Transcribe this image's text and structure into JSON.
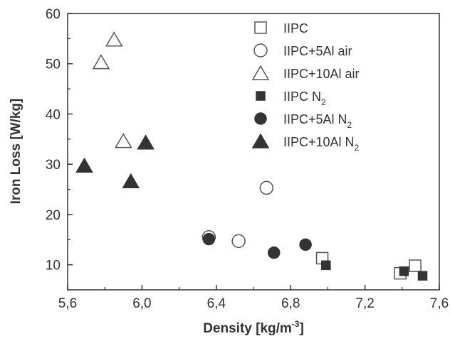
{
  "chart_data": {
    "type": "scatter",
    "title": "",
    "xlabel": "Density [kg/m",
    "xlabel_sup": "-3",
    "xlabel_end": "]",
    "ylabel": "Iron Loss [W/kg]",
    "xlim": [
      5.6,
      7.6
    ],
    "ylim": [
      5,
      60
    ],
    "x_ticks": [
      5.6,
      6.0,
      6.4,
      6.8,
      7.2,
      7.6
    ],
    "x_tick_labels": [
      "5,6",
      "6,0",
      "6,4",
      "6,8",
      "7,2",
      "7,6"
    ],
    "y_ticks": [
      10,
      20,
      30,
      40,
      50,
      60
    ],
    "y_tick_labels": [
      "10",
      "20",
      "30",
      "40",
      "50",
      "60"
    ],
    "grid": false,
    "legend_position": "top-right",
    "series": [
      {
        "name": "IIPC",
        "name_sub": "",
        "name_end": "",
        "marker": "square",
        "filled": false,
        "points": [
          [
            6.97,
            11.3
          ],
          [
            7.39,
            8.3
          ],
          [
            7.47,
            9.8
          ]
        ]
      },
      {
        "name": "IIPC+5Al air",
        "name_sub": "",
        "name_end": "",
        "marker": "circle",
        "filled": false,
        "points": [
          [
            6.36,
            15.5
          ],
          [
            6.52,
            14.7
          ],
          [
            6.67,
            25.3
          ]
        ]
      },
      {
        "name": "IIPC+10Al air",
        "name_sub": "",
        "name_end": "",
        "marker": "triangle",
        "filled": false,
        "points": [
          [
            5.78,
            50.3
          ],
          [
            5.85,
            54.8
          ],
          [
            5.9,
            34.6
          ]
        ]
      },
      {
        "name": "IIPC N",
        "name_sub": "2",
        "name_end": "",
        "marker": "square",
        "filled": true,
        "points": [
          [
            6.99,
            9.9
          ],
          [
            7.41,
            8.7
          ],
          [
            7.51,
            7.8
          ]
        ]
      },
      {
        "name": "IIPC+5Al N",
        "name_sub": "2",
        "name_end": "",
        "marker": "circle",
        "filled": true,
        "points": [
          [
            6.36,
            15.1
          ],
          [
            6.71,
            12.4
          ],
          [
            6.88,
            14.0
          ]
        ]
      },
      {
        "name": "IIPC+10Al N",
        "name_sub": "2",
        "name_end": "",
        "marker": "triangle",
        "filled": true,
        "points": [
          [
            5.69,
            29.7
          ],
          [
            5.94,
            26.6
          ],
          [
            6.02,
            34.3
          ]
        ]
      }
    ]
  }
}
